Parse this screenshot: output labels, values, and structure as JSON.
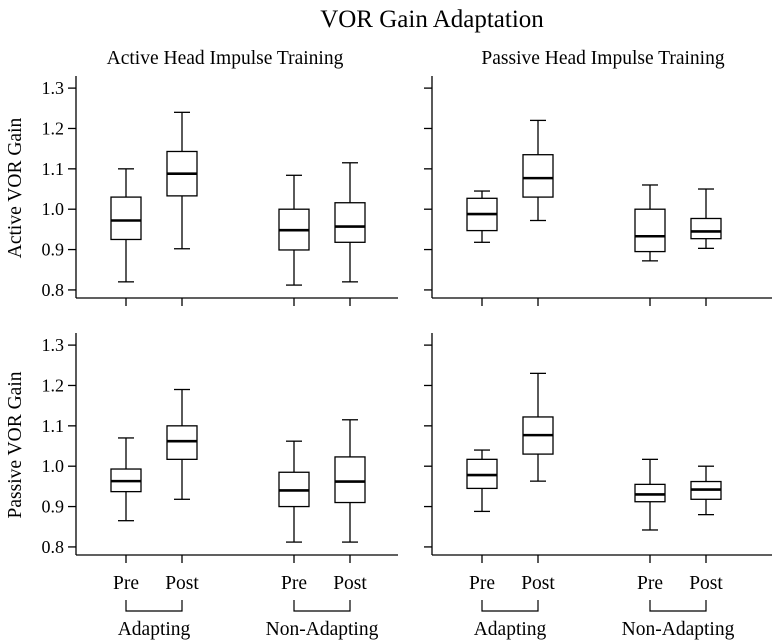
{
  "chart_data": {
    "type": "boxplot",
    "title": "VOR Gain Adaptation",
    "columns": [
      "Active Head Impulse Training",
      "Passive Head Impulse Training"
    ],
    "rows": [
      "Active VOR Gain",
      "Passive VOR Gain"
    ],
    "ylim": [
      0.78,
      1.33
    ],
    "yticks": [
      0.8,
      0.9,
      1.0,
      1.1,
      1.2,
      1.3
    ],
    "ytick_labels": [
      "0.8",
      "0.9",
      "1.0",
      "1.1",
      "1.2",
      "1.3"
    ],
    "categories": [
      "Pre",
      "Post",
      "Pre",
      "Post"
    ],
    "groups": [
      "Adapting",
      "Non-Adapting"
    ],
    "panels": [
      {
        "row": "Active VOR Gain",
        "column": "Active Head Impulse Training",
        "boxes": [
          {
            "group": "Adapting",
            "label": "Pre",
            "min": 0.82,
            "q1": 0.925,
            "median": 0.972,
            "q3": 1.03,
            "max": 1.1
          },
          {
            "group": "Adapting",
            "label": "Post",
            "min": 0.902,
            "q1": 1.033,
            "median": 1.088,
            "q3": 1.143,
            "max": 1.24
          },
          {
            "group": "Non-Adapting",
            "label": "Pre",
            "min": 0.812,
            "q1": 0.899,
            "median": 0.948,
            "q3": 1.0,
            "max": 1.084
          },
          {
            "group": "Non-Adapting",
            "label": "Post",
            "min": 0.82,
            "q1": 0.918,
            "median": 0.957,
            "q3": 1.016,
            "max": 1.115
          }
        ]
      },
      {
        "row": "Active VOR Gain",
        "column": "Passive Head Impulse Training",
        "boxes": [
          {
            "group": "Adapting",
            "label": "Pre",
            "min": 0.918,
            "q1": 0.947,
            "median": 0.988,
            "q3": 1.027,
            "max": 1.045
          },
          {
            "group": "Adapting",
            "label": "Post",
            "min": 0.972,
            "q1": 1.03,
            "median": 1.077,
            "q3": 1.135,
            "max": 1.22
          },
          {
            "group": "Non-Adapting",
            "label": "Pre",
            "min": 0.872,
            "q1": 0.895,
            "median": 0.933,
            "q3": 1.0,
            "max": 1.06
          },
          {
            "group": "Non-Adapting",
            "label": "Post",
            "min": 0.903,
            "q1": 0.927,
            "median": 0.945,
            "q3": 0.977,
            "max": 1.05
          }
        ]
      },
      {
        "row": "Passive VOR Gain",
        "column": "Active Head Impulse Training",
        "boxes": [
          {
            "group": "Adapting",
            "label": "Pre",
            "min": 0.865,
            "q1": 0.937,
            "median": 0.963,
            "q3": 0.993,
            "max": 1.07
          },
          {
            "group": "Adapting",
            "label": "Post",
            "min": 0.918,
            "q1": 1.017,
            "median": 1.062,
            "q3": 1.1,
            "max": 1.19
          },
          {
            "group": "Non-Adapting",
            "label": "Pre",
            "min": 0.812,
            "q1": 0.9,
            "median": 0.94,
            "q3": 0.985,
            "max": 1.062
          },
          {
            "group": "Non-Adapting",
            "label": "Post",
            "min": 0.812,
            "q1": 0.91,
            "median": 0.962,
            "q3": 1.023,
            "max": 1.115
          }
        ]
      },
      {
        "row": "Passive VOR Gain",
        "column": "Passive Head Impulse Training",
        "boxes": [
          {
            "group": "Adapting",
            "label": "Pre",
            "min": 0.888,
            "q1": 0.945,
            "median": 0.978,
            "q3": 1.017,
            "max": 1.04
          },
          {
            "group": "Adapting",
            "label": "Post",
            "min": 0.963,
            "q1": 1.03,
            "median": 1.077,
            "q3": 1.122,
            "max": 1.23
          },
          {
            "group": "Non-Adapting",
            "label": "Pre",
            "min": 0.842,
            "q1": 0.912,
            "median": 0.93,
            "q3": 0.955,
            "max": 1.017
          },
          {
            "group": "Non-Adapting",
            "label": "Post",
            "min": 0.88,
            "q1": 0.918,
            "median": 0.942,
            "q3": 0.962,
            "max": 1.0
          }
        ]
      }
    ]
  }
}
